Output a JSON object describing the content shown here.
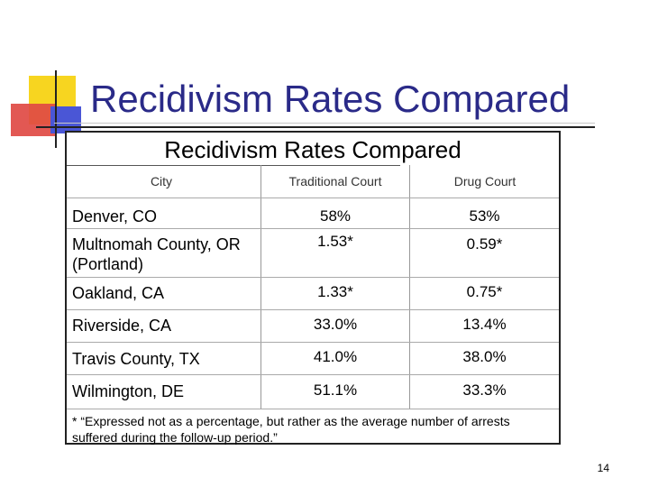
{
  "slide": {
    "title": "Recidivism Rates Compared",
    "page_number": "14"
  },
  "table": {
    "title": "Recidivism Rates Compared",
    "headers": {
      "city": "City",
      "traditional": "Traditional Court",
      "drug": "Drug Court"
    },
    "rows": [
      {
        "city": "Denver, CO",
        "traditional": "58%",
        "drug": "53%"
      },
      {
        "city": "Multnomah County, OR (Portland)",
        "traditional": "1.53*",
        "drug": "0.59*"
      },
      {
        "city": "Oakland, CA",
        "traditional": "1.33*",
        "drug": "0.75*"
      },
      {
        "city": "Riverside, CA",
        "traditional": "33.0%",
        "drug": "13.4%"
      },
      {
        "city": "Travis County, TX",
        "traditional": "41.0%",
        "drug": "38.0%"
      },
      {
        "city": "Wilmington, DE",
        "traditional": "51.1%",
        "drug": "33.3%"
      }
    ],
    "footnote": "* “Expressed not as a percentage, but rather as the average number of arrests suffered during the follow-up period.”"
  },
  "colors": {
    "title": "#2a2a88",
    "deco_yellow": "#f7d520",
    "deco_red": "#e04a44",
    "deco_blue": "#4a56d6"
  }
}
